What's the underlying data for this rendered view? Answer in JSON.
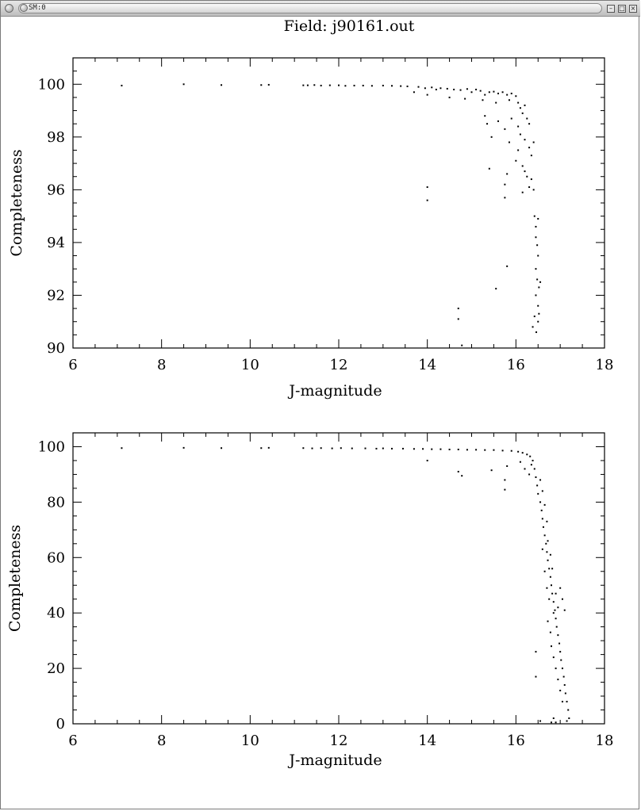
{
  "window": {
    "title": "SM:0",
    "minimize_icon": "minimize-icon",
    "maximize_icon": "maximize-icon",
    "close_icon": "close-icon"
  },
  "figure": {
    "title": "Field: j90161.out"
  },
  "chart_data": [
    {
      "type": "scatter",
      "title": "",
      "xlabel": "J-magnitude",
      "ylabel": "Completeness",
      "xlim": [
        6,
        18
      ],
      "ylim": [
        90,
        101
      ],
      "xticks": [
        6,
        8,
        10,
        12,
        14,
        16,
        18
      ],
      "yticks": [
        90,
        92,
        94,
        96,
        98,
        100
      ],
      "grid": false,
      "legend": "none",
      "point_color": "#000000",
      "points": [
        [
          7.1,
          99.95
        ],
        [
          8.5,
          100
        ],
        [
          9.35,
          99.97
        ],
        [
          10.25,
          99.97
        ],
        [
          10.42,
          99.98
        ],
        [
          11.2,
          99.96
        ],
        [
          11.3,
          99.96
        ],
        [
          11.45,
          99.97
        ],
        [
          11.6,
          99.95
        ],
        [
          11.8,
          99.96
        ],
        [
          12.0,
          99.96
        ],
        [
          12.15,
          99.94
        ],
        [
          12.35,
          99.95
        ],
        [
          12.55,
          99.95
        ],
        [
          12.75,
          99.94
        ],
        [
          13.0,
          99.95
        ],
        [
          13.2,
          99.94
        ],
        [
          13.4,
          99.93
        ],
        [
          13.55,
          99.92
        ],
        [
          13.7,
          99.7
        ],
        [
          13.8,
          99.9
        ],
        [
          13.95,
          99.85
        ],
        [
          14.1,
          99.88
        ],
        [
          14.2,
          99.8
        ],
        [
          14.3,
          99.85
        ],
        [
          14.45,
          99.83
        ],
        [
          14.6,
          99.8
        ],
        [
          14.75,
          99.78
        ],
        [
          14.9,
          99.82
        ],
        [
          15.0,
          99.7
        ],
        [
          15.1,
          99.8
        ],
        [
          15.2,
          99.75
        ],
        [
          15.3,
          99.6
        ],
        [
          15.4,
          99.7
        ],
        [
          15.5,
          99.72
        ],
        [
          15.6,
          99.65
        ],
        [
          15.7,
          99.7
        ],
        [
          15.8,
          99.6
        ],
        [
          15.9,
          99.65
        ],
        [
          16.0,
          99.55
        ],
        [
          14.0,
          99.6
        ],
        [
          14.5,
          99.5
        ],
        [
          14.85,
          99.45
        ],
        [
          15.25,
          99.4
        ],
        [
          15.55,
          99.3
        ],
        [
          15.85,
          99.4
        ],
        [
          16.05,
          99.3
        ],
        [
          16.1,
          99.1
        ],
        [
          16.15,
          98.9
        ],
        [
          16.2,
          99.2
        ],
        [
          16.25,
          98.7
        ],
        [
          16.3,
          98.5
        ],
        [
          15.3,
          98.8
        ],
        [
          15.6,
          98.6
        ],
        [
          15.9,
          98.7
        ],
        [
          16.05,
          98.4
        ],
        [
          15.35,
          98.5
        ],
        [
          15.75,
          98.3
        ],
        [
          15.45,
          98.0
        ],
        [
          15.85,
          97.8
        ],
        [
          16.1,
          98.1
        ],
        [
          16.2,
          97.9
        ],
        [
          16.3,
          97.6
        ],
        [
          16.35,
          97.3
        ],
        [
          16.4,
          97.8
        ],
        [
          16.0,
          97.1
        ],
        [
          16.15,
          96.9
        ],
        [
          16.25,
          96.5
        ],
        [
          16.3,
          96.1
        ],
        [
          16.35,
          96.4
        ],
        [
          16.4,
          96.0
        ],
        [
          15.8,
          96.6
        ],
        [
          15.4,
          96.8
        ],
        [
          16.05,
          97.5
        ],
        [
          16.2,
          96.7
        ],
        [
          14.0,
          96.1
        ],
        [
          14.0,
          95.6
        ],
        [
          15.75,
          96.2
        ],
        [
          15.75,
          95.7
        ],
        [
          16.15,
          95.9
        ],
        [
          16.42,
          95.0
        ],
        [
          16.45,
          94.6
        ],
        [
          16.5,
          94.9
        ],
        [
          16.45,
          94.2
        ],
        [
          16.48,
          93.9
        ],
        [
          16.5,
          93.5
        ],
        [
          16.45,
          93.0
        ],
        [
          16.48,
          92.6
        ],
        [
          16.52,
          92.3
        ],
        [
          16.45,
          92.0
        ],
        [
          16.5,
          91.6
        ],
        [
          16.42,
          91.2
        ],
        [
          16.5,
          91.0
        ],
        [
          16.38,
          90.8
        ],
        [
          16.46,
          90.6
        ],
        [
          16.52,
          91.3
        ],
        [
          16.55,
          92.5
        ],
        [
          15.8,
          93.1
        ],
        [
          15.55,
          92.25
        ],
        [
          14.7,
          91.5
        ],
        [
          14.7,
          91.1
        ],
        [
          14.78,
          90.1
        ]
      ]
    },
    {
      "type": "scatter",
      "title": "",
      "xlabel": "J-magnitude",
      "ylabel": "Completeness",
      "xlim": [
        6,
        18
      ],
      "ylim": [
        0,
        105
      ],
      "xticks": [
        6,
        8,
        10,
        12,
        14,
        16,
        18
      ],
      "yticks": [
        0,
        20,
        40,
        60,
        80,
        100
      ],
      "grid": false,
      "legend": "none",
      "point_color": "#000000",
      "points": [
        [
          7.1,
          99.5
        ],
        [
          8.5,
          99.6
        ],
        [
          9.35,
          99.5
        ],
        [
          10.25,
          99.5
        ],
        [
          10.42,
          99.6
        ],
        [
          11.2,
          99.5
        ],
        [
          11.4,
          99.4
        ],
        [
          11.6,
          99.5
        ],
        [
          11.85,
          99.4
        ],
        [
          12.05,
          99.5
        ],
        [
          12.3,
          99.4
        ],
        [
          12.6,
          99.4
        ],
        [
          12.85,
          99.3
        ],
        [
          13.0,
          99.4
        ],
        [
          13.2,
          99.3
        ],
        [
          13.45,
          99.3
        ],
        [
          13.7,
          99.2
        ],
        [
          13.9,
          99.2
        ],
        [
          14.1,
          99.1
        ],
        [
          14.3,
          99.1
        ],
        [
          14.5,
          99.0
        ],
        [
          14.7,
          99.0
        ],
        [
          14.9,
          98.9
        ],
        [
          15.1,
          98.9
        ],
        [
          15.3,
          98.8
        ],
        [
          15.5,
          98.8
        ],
        [
          15.7,
          98.6
        ],
        [
          15.9,
          98.5
        ],
        [
          16.05,
          98.2
        ],
        [
          16.15,
          97.8
        ],
        [
          16.25,
          97.2
        ],
        [
          16.32,
          96.5
        ],
        [
          14.0,
          95.0
        ],
        [
          14.7,
          91.0
        ],
        [
          14.78,
          89.5
        ],
        [
          15.45,
          91.5
        ],
        [
          15.75,
          88.0
        ],
        [
          15.75,
          84.5
        ],
        [
          15.8,
          93.0
        ],
        [
          16.1,
          94.5
        ],
        [
          16.2,
          92.0
        ],
        [
          16.3,
          90.0
        ],
        [
          16.35,
          93.5
        ],
        [
          16.38,
          95.0
        ],
        [
          16.42,
          92.0
        ],
        [
          16.45,
          89.0
        ],
        [
          16.48,
          86.0
        ],
        [
          16.5,
          83.0
        ],
        [
          16.55,
          80.0
        ],
        [
          16.58,
          77.0
        ],
        [
          16.6,
          74.0
        ],
        [
          16.62,
          71.0
        ],
        [
          16.65,
          68.0
        ],
        [
          16.68,
          65.0
        ],
        [
          16.7,
          62.0
        ],
        [
          16.72,
          59.0
        ],
        [
          16.75,
          56.0
        ],
        [
          16.78,
          53.0
        ],
        [
          16.8,
          50.0
        ],
        [
          16.82,
          47.0
        ],
        [
          16.85,
          44.0
        ],
        [
          16.88,
          41.0
        ],
        [
          16.9,
          38.0
        ],
        [
          16.92,
          35.0
        ],
        [
          16.95,
          32.0
        ],
        [
          16.98,
          29.0
        ],
        [
          17.0,
          26.0
        ],
        [
          17.02,
          23.0
        ],
        [
          17.05,
          20.0
        ],
        [
          17.08,
          17.0
        ],
        [
          17.1,
          14.0
        ],
        [
          17.12,
          11.0
        ],
        [
          17.15,
          8.0
        ],
        [
          17.18,
          5.0
        ],
        [
          17.2,
          2.0
        ],
        [
          16.55,
          88.0
        ],
        [
          16.6,
          84.0
        ],
        [
          16.65,
          79.0
        ],
        [
          16.7,
          73.0
        ],
        [
          16.72,
          66.0
        ],
        [
          16.78,
          61.0
        ],
        [
          16.82,
          56.0
        ],
        [
          16.6,
          63.0
        ],
        [
          16.65,
          55.0
        ],
        [
          16.7,
          49.0
        ],
        [
          16.75,
          45.0
        ],
        [
          16.85,
          40.0
        ],
        [
          16.9,
          47.0
        ],
        [
          16.95,
          42.0
        ],
        [
          17.0,
          49.0
        ],
        [
          17.05,
          45.0
        ],
        [
          16.72,
          37.0
        ],
        [
          16.78,
          33.0
        ],
        [
          16.8,
          28.0
        ],
        [
          16.85,
          24.0
        ],
        [
          16.9,
          20.0
        ],
        [
          16.95,
          16.0
        ],
        [
          17.0,
          12.0
        ],
        [
          17.05,
          8.0
        ],
        [
          17.1,
          41.0
        ],
        [
          16.45,
          26.0
        ],
        [
          16.45,
          17.0
        ],
        [
          16.55,
          1.0
        ],
        [
          16.8,
          0.5
        ],
        [
          16.85,
          2.0
        ],
        [
          16.9,
          0.5
        ],
        [
          17.15,
          1.0
        ]
      ]
    }
  ]
}
